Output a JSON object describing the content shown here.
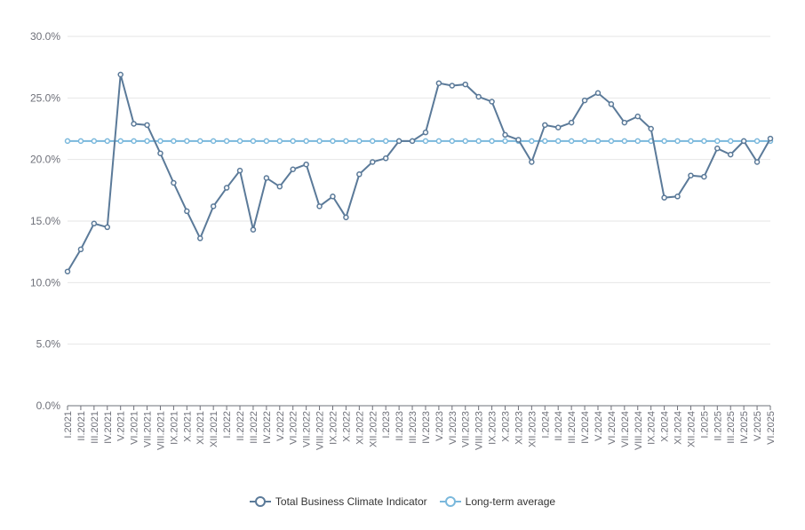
{
  "chart_data": {
    "type": "line",
    "categories": [
      "I.2021",
      "II.2021",
      "III.2021",
      "IV.2021",
      "V.2021",
      "VI.2021",
      "VII.2021",
      "VIII.2021",
      "IX.2021",
      "X.2021",
      "XI.2021",
      "XII.2021",
      "I.2022",
      "II.2022",
      "III.2022",
      "IV.2022",
      "V.2022",
      "VI.2022",
      "VII.2022",
      "VIII.2022",
      "IX.2022",
      "X.2022",
      "XI.2022",
      "XII.2022",
      "I.2023",
      "II.2023",
      "III.2023",
      "IV.2023",
      "V.2023",
      "VI.2023",
      "VII.2023",
      "VIII.2023",
      "IX.2023",
      "X.2023",
      "XI.2023",
      "XII.2023",
      "I.2024",
      "II.2024",
      "III.2024",
      "IV.2024",
      "V.2024",
      "VI.2024",
      "VII.2024",
      "VIII.2024",
      "IX.2024",
      "X.2024",
      "XI.2024",
      "XII.2024",
      "I.2025",
      "II.2025",
      "III.2025",
      "IV.2025",
      "V.2025",
      "VI.2025"
    ],
    "series": [
      {
        "name": "Total Business Climate Indicator",
        "color": "#5b7a99",
        "values": [
          10.9,
          12.7,
          14.8,
          14.5,
          26.9,
          22.9,
          22.8,
          20.5,
          18.1,
          15.8,
          13.6,
          16.2,
          17.7,
          19.1,
          14.3,
          18.5,
          17.8,
          19.2,
          19.6,
          16.2,
          17.0,
          15.3,
          18.8,
          19.8,
          20.1,
          21.5,
          21.5,
          22.2,
          26.2,
          26.0,
          26.1,
          25.1,
          24.7,
          22.0,
          21.6,
          19.8,
          22.8,
          22.6,
          23.0,
          24.8,
          25.4,
          24.5,
          23.0,
          23.5,
          22.5,
          16.9,
          17.0,
          18.7,
          18.6,
          20.9,
          20.4,
          21.5,
          19.8,
          21.7
        ]
      },
      {
        "name": "Long-term average",
        "color": "#7ab8dc",
        "values": [
          21.5,
          21.5,
          21.5,
          21.5,
          21.5,
          21.5,
          21.5,
          21.5,
          21.5,
          21.5,
          21.5,
          21.5,
          21.5,
          21.5,
          21.5,
          21.5,
          21.5,
          21.5,
          21.5,
          21.5,
          21.5,
          21.5,
          21.5,
          21.5,
          21.5,
          21.5,
          21.5,
          21.5,
          21.5,
          21.5,
          21.5,
          21.5,
          21.5,
          21.5,
          21.5,
          21.5,
          21.5,
          21.5,
          21.5,
          21.5,
          21.5,
          21.5,
          21.5,
          21.5,
          21.5,
          21.5,
          21.5,
          21.5,
          21.5,
          21.5,
          21.5,
          21.5,
          21.5,
          21.5
        ]
      }
    ],
    "ylim": [
      0,
      30
    ],
    "yticks": [
      "0.0%",
      "5.0%",
      "10.0%",
      "15.0%",
      "20.0%",
      "25.0%",
      "30.0%"
    ],
    "ytick_values": [
      0,
      5,
      10,
      15,
      20,
      25,
      30
    ],
    "grid": true,
    "legend_position": "bottom-center",
    "title": "",
    "xlabel": "",
    "ylabel": ""
  }
}
